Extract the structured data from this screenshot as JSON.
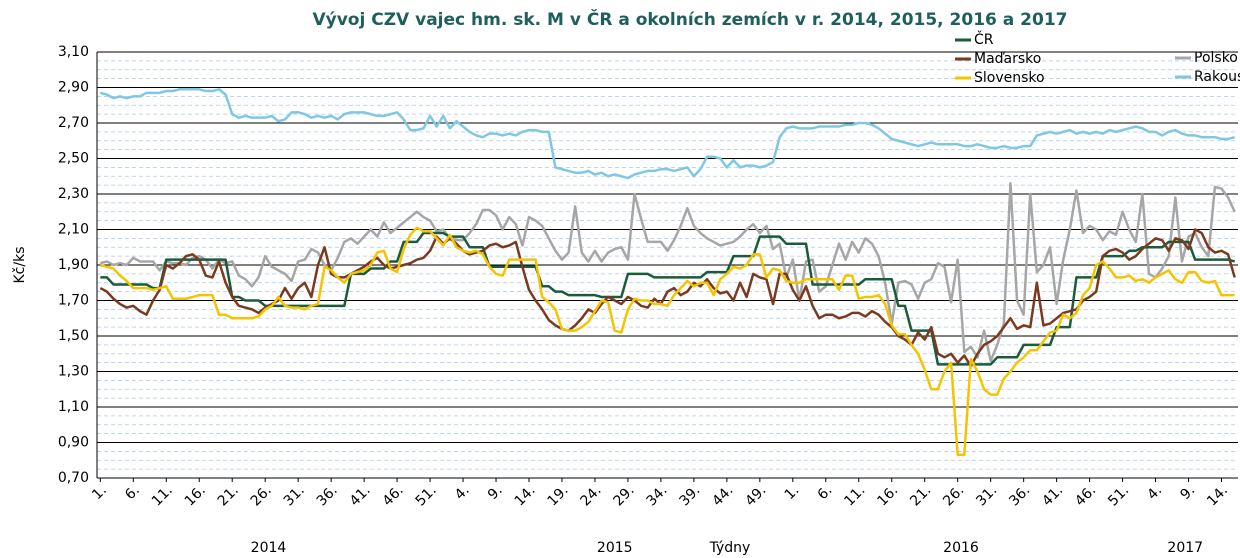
{
  "chart_data": {
    "type": "line",
    "title": "Vývoj CZV vajec hm. sk. M v ČR a okolních  zemích v r. 2014, 2015, 2016 a 2017",
    "y_label": "Kč/ks",
    "x_label": "Týdny",
    "ylim": [
      0.7,
      3.1
    ],
    "yticks": [
      {
        "value": 0.7,
        "label": "0,70"
      },
      {
        "value": 0.9,
        "label": "0,90"
      },
      {
        "value": 1.1,
        "label": "1,10"
      },
      {
        "value": 1.3,
        "label": "1,30"
      },
      {
        "value": 1.5,
        "label": "1,50"
      },
      {
        "value": 1.7,
        "label": "1,70"
      },
      {
        "value": 1.9,
        "label": "1,90"
      },
      {
        "value": 2.1,
        "label": "2,10"
      },
      {
        "value": 2.3,
        "label": "2,30"
      },
      {
        "value": 2.5,
        "label": "2,50"
      },
      {
        "value": 2.7,
        "label": "2,70"
      },
      {
        "value": 2.9,
        "label": "2,90"
      },
      {
        "value": 3.1,
        "label": "3,10"
      }
    ],
    "grid": true,
    "minor_grid": true,
    "legend": "top-right",
    "groups": [
      {
        "label": "2014",
        "size": 52
      },
      {
        "label": "2015",
        "size": 53
      },
      {
        "label": "2016",
        "size": 52
      },
      {
        "label": "2017",
        "size": 16
      }
    ],
    "categories": [
      "1.",
      null,
      null,
      null,
      null,
      "6.",
      null,
      null,
      null,
      null,
      "11.",
      null,
      null,
      null,
      null,
      "16.",
      null,
      null,
      null,
      null,
      "21.",
      null,
      null,
      null,
      null,
      "26.",
      null,
      null,
      null,
      null,
      "31.",
      null,
      null,
      null,
      null,
      "36.",
      null,
      null,
      null,
      null,
      "41.",
      null,
      null,
      null,
      null,
      "46.",
      null,
      null,
      null,
      null,
      "51.",
      null,
      null,
      null,
      null,
      "4.",
      null,
      null,
      null,
      null,
      "9.",
      null,
      null,
      null,
      null,
      "14.",
      null,
      null,
      null,
      null,
      "19.",
      null,
      null,
      null,
      null,
      "24.",
      null,
      null,
      null,
      null,
      "29.",
      null,
      null,
      null,
      null,
      "34.",
      null,
      null,
      null,
      null,
      "39.",
      null,
      null,
      null,
      null,
      "44.",
      null,
      null,
      null,
      null,
      "49.",
      null,
      null,
      null,
      null,
      "1.",
      null,
      null,
      null,
      null,
      "6.",
      null,
      null,
      null,
      null,
      "11.",
      null,
      null,
      null,
      null,
      "16.",
      null,
      null,
      null,
      null,
      "21.",
      null,
      null,
      null,
      null,
      "26.",
      null,
      null,
      null,
      null,
      "31.",
      null,
      null,
      null,
      null,
      "36.",
      null,
      null,
      null,
      null,
      "41.",
      null,
      null,
      null,
      null,
      "46.",
      null,
      null,
      null,
      null,
      "51.",
      null,
      null,
      null,
      null,
      "4.",
      null,
      null,
      null,
      null,
      "9.",
      null,
      null,
      null,
      null,
      "14.",
      null,
      null
    ],
    "series": [
      {
        "name": "ČR",
        "color": "#1a5c3a",
        "values": [
          1.83,
          1.83,
          1.79,
          1.79,
          1.79,
          1.79,
          1.79,
          1.79,
          1.77,
          1.77,
          1.93,
          1.93,
          1.93,
          1.93,
          1.93,
          1.93,
          1.93,
          1.93,
          1.93,
          1.93,
          1.72,
          1.72,
          1.7,
          1.7,
          1.7,
          1.67,
          1.67,
          1.67,
          1.67,
          1.67,
          1.67,
          1.67,
          1.67,
          1.67,
          1.67,
          1.67,
          1.67,
          1.67,
          1.85,
          1.85,
          1.85,
          1.88,
          1.88,
          1.88,
          1.92,
          1.92,
          2.03,
          2.03,
          2.03,
          2.08,
          2.08,
          2.08,
          2.08,
          2.06,
          2.06,
          2.06,
          2.0,
          2.0,
          2.0,
          1.89,
          1.89,
          1.89,
          1.89,
          1.89,
          1.89,
          1.89,
          1.89,
          1.78,
          1.78,
          1.75,
          1.75,
          1.73,
          1.73,
          1.73,
          1.73,
          1.73,
          1.72,
          1.72,
          1.72,
          1.72,
          1.85,
          1.85,
          1.85,
          1.85,
          1.83,
          1.83,
          1.83,
          1.83,
          1.83,
          1.83,
          1.83,
          1.83,
          1.86,
          1.86,
          1.86,
          1.86,
          1.95,
          1.95,
          1.95,
          1.95,
          2.06,
          2.06,
          2.06,
          2.06,
          2.02,
          2.02,
          2.02,
          2.02,
          1.79,
          1.79,
          1.79,
          1.79,
          1.79,
          1.79,
          1.79,
          1.79,
          1.82,
          1.82,
          1.82,
          1.82,
          1.82,
          1.67,
          1.67,
          1.53,
          1.53,
          1.53,
          1.53,
          1.34,
          1.34,
          1.34,
          1.34,
          1.34,
          1.34,
          1.34,
          1.34,
          1.34,
          1.38,
          1.38,
          1.38,
          1.38,
          1.45,
          1.45,
          1.45,
          1.45,
          1.45,
          1.55,
          1.55,
          1.55,
          1.83,
          1.83,
          1.83,
          1.83,
          1.95,
          1.95,
          1.95,
          1.95,
          1.98,
          1.98,
          2.0,
          2.0,
          2.0,
          2.0,
          2.03,
          2.03,
          2.03,
          2.03,
          1.93,
          1.93,
          1.93,
          1.93,
          1.93,
          1.93,
          1.92
        ]
      },
      {
        "name": "Maďarsko",
        "color": "#7b3a1e",
        "values": [
          1.77,
          1.75,
          1.71,
          1.68,
          1.66,
          1.67,
          1.64,
          1.62,
          1.7,
          1.76,
          1.9,
          1.88,
          1.91,
          1.95,
          1.96,
          1.93,
          1.84,
          1.83,
          1.92,
          1.8,
          1.72,
          1.67,
          1.66,
          1.65,
          1.63,
          1.66,
          1.68,
          1.7,
          1.77,
          1.71,
          1.77,
          1.8,
          1.72,
          1.9,
          2.0,
          1.85,
          1.83,
          1.83,
          1.85,
          1.87,
          1.89,
          1.92,
          1.94,
          1.9,
          1.88,
          1.89,
          1.9,
          1.91,
          1.93,
          1.94,
          1.98,
          2.06,
          2.02,
          2.05,
          2.02,
          1.98,
          1.96,
          1.97,
          1.98,
          2.01,
          2.02,
          2.0,
          2.01,
          2.03,
          1.89,
          1.76,
          1.7,
          1.65,
          1.59,
          1.56,
          1.54,
          1.53,
          1.56,
          1.6,
          1.65,
          1.63,
          1.68,
          1.72,
          1.7,
          1.68,
          1.72,
          1.7,
          1.67,
          1.66,
          1.71,
          1.68,
          1.75,
          1.77,
          1.73,
          1.75,
          1.8,
          1.78,
          1.82,
          1.77,
          1.74,
          1.75,
          1.7,
          1.8,
          1.72,
          1.85,
          1.83,
          1.82,
          1.68,
          1.85,
          1.85,
          1.76,
          1.7,
          1.78,
          1.67,
          1.6,
          1.62,
          1.62,
          1.6,
          1.61,
          1.63,
          1.63,
          1.61,
          1.64,
          1.62,
          1.58,
          1.55,
          1.5,
          1.48,
          1.45,
          1.52,
          1.48,
          1.55,
          1.4,
          1.38,
          1.4,
          1.35,
          1.39,
          1.33,
          1.4,
          1.45,
          1.47,
          1.5,
          1.55,
          1.6,
          1.54,
          1.56,
          1.55,
          1.8,
          1.56,
          1.57,
          1.6,
          1.63,
          1.64,
          1.65,
          1.7,
          1.72,
          1.75,
          1.95,
          1.98,
          1.99,
          1.97,
          1.93,
          1.95,
          1.99,
          2.02,
          2.05,
          2.04,
          1.98,
          2.05,
          2.04,
          1.99,
          2.1,
          2.08,
          2.0,
          1.97,
          1.98,
          1.96,
          1.83
        ]
      },
      {
        "name": "Slovensko",
        "color": "#f5c400",
        "values": [
          1.9,
          1.89,
          1.88,
          1.84,
          1.81,
          1.77,
          1.77,
          1.77,
          1.76,
          1.77,
          1.78,
          1.71,
          1.71,
          1.71,
          1.72,
          1.73,
          1.73,
          1.73,
          1.62,
          1.62,
          1.6,
          1.6,
          1.6,
          1.6,
          1.61,
          1.65,
          1.67,
          1.72,
          1.67,
          1.66,
          1.66,
          1.65,
          1.67,
          1.68,
          1.89,
          1.87,
          1.83,
          1.8,
          1.85,
          1.86,
          1.87,
          1.9,
          1.97,
          1.98,
          1.88,
          1.86,
          1.99,
          2.07,
          2.11,
          2.09,
          2.09,
          2.05,
          2.01,
          2.07,
          2.0,
          1.98,
          1.97,
          1.98,
          1.96,
          1.89,
          1.85,
          1.84,
          1.93,
          1.93,
          1.93,
          1.93,
          1.93,
          1.72,
          1.69,
          1.65,
          1.54,
          1.53,
          1.53,
          1.55,
          1.58,
          1.64,
          1.7,
          1.69,
          1.53,
          1.52,
          1.65,
          1.71,
          1.7,
          1.7,
          1.68,
          1.68,
          1.67,
          1.73,
          1.77,
          1.81,
          1.78,
          1.8,
          1.8,
          1.73,
          1.82,
          1.85,
          1.89,
          1.88,
          1.9,
          1.96,
          1.96,
          1.83,
          1.88,
          1.87,
          1.81,
          1.8,
          1.8,
          1.82,
          1.82,
          1.82,
          1.82,
          1.82,
          1.76,
          1.84,
          1.84,
          1.71,
          1.72,
          1.72,
          1.73,
          1.68,
          1.56,
          1.51,
          1.51,
          1.45,
          1.4,
          1.31,
          1.2,
          1.2,
          1.3,
          1.35,
          0.83,
          0.83,
          1.37,
          1.3,
          1.2,
          1.17,
          1.17,
          1.26,
          1.3,
          1.35,
          1.38,
          1.42,
          1.42,
          1.47,
          1.52,
          1.53,
          1.62,
          1.6,
          1.63,
          1.73,
          1.77,
          1.9,
          1.92,
          1.88,
          1.83,
          1.83,
          1.84,
          1.81,
          1.82,
          1.8,
          1.83,
          1.85,
          1.87,
          1.82,
          1.8,
          1.86,
          1.86,
          1.81,
          1.8,
          1.81,
          1.73,
          1.73,
          1.73
        ]
      },
      {
        "name": "Polsko",
        "color": "#a6a6a6",
        "values": [
          1.91,
          1.92,
          1.9,
          1.91,
          1.9,
          1.94,
          1.92,
          1.92,
          1.92,
          1.87,
          1.92,
          1.91,
          1.91,
          1.9,
          1.94,
          1.95,
          1.93,
          1.88,
          1.93,
          1.91,
          1.92,
          1.84,
          1.82,
          1.78,
          1.83,
          1.95,
          1.89,
          1.87,
          1.85,
          1.81,
          1.92,
          1.93,
          1.99,
          1.97,
          1.9,
          1.87,
          1.94,
          2.03,
          2.05,
          2.02,
          2.06,
          2.1,
          2.06,
          2.14,
          2.08,
          2.11,
          2.14,
          2.17,
          2.2,
          2.17,
          2.15,
          2.09,
          2.1,
          2.05,
          2.04,
          2.04,
          2.08,
          2.13,
          2.21,
          2.21,
          2.18,
          2.1,
          2.17,
          2.13,
          2.01,
          2.17,
          2.15,
          2.12,
          2.05,
          1.98,
          1.93,
          1.97,
          2.23,
          1.97,
          1.92,
          1.98,
          1.92,
          1.97,
          1.99,
          2.0,
          1.93,
          2.3,
          2.16,
          2.03,
          2.03,
          2.03,
          1.98,
          2.04,
          2.12,
          2.22,
          2.12,
          2.08,
          2.05,
          2.03,
          2.01,
          2.02,
          2.03,
          2.06,
          2.1,
          2.13,
          2.08,
          2.12,
          1.99,
          2.02,
          1.83,
          1.93,
          1.7,
          1.92,
          1.93,
          1.75,
          1.78,
          1.9,
          2.02,
          1.93,
          2.03,
          1.97,
          2.05,
          2.02,
          1.95,
          1.8,
          1.57,
          1.8,
          1.81,
          1.79,
          1.71,
          1.8,
          1.82,
          1.91,
          1.89,
          1.69,
          1.93,
          1.41,
          1.44,
          1.38,
          1.53,
          1.36,
          1.45,
          1.57,
          2.36,
          1.7,
          1.62,
          2.3,
          1.86,
          1.9,
          2.0,
          1.68,
          1.93,
          2.1,
          2.32,
          2.08,
          2.12,
          2.1,
          2.04,
          2.09,
          2.07,
          2.2,
          2.1,
          2.03,
          2.3,
          1.85,
          1.83,
          1.88,
          1.95,
          2.28,
          1.92,
          2.06,
          2.08,
          2.0,
          1.95,
          2.34,
          2.33,
          2.28,
          2.2
        ]
      },
      {
        "name": "Rakousko",
        "color": "#7ec8e3",
        "values": [
          2.87,
          2.86,
          2.84,
          2.85,
          2.84,
          2.85,
          2.85,
          2.87,
          2.87,
          2.87,
          2.88,
          2.88,
          2.89,
          2.89,
          2.89,
          2.89,
          2.88,
          2.88,
          2.89,
          2.86,
          2.75,
          2.73,
          2.74,
          2.73,
          2.73,
          2.73,
          2.74,
          2.71,
          2.72,
          2.76,
          2.76,
          2.75,
          2.73,
          2.74,
          2.73,
          2.74,
          2.72,
          2.75,
          2.76,
          2.76,
          2.76,
          2.75,
          2.74,
          2.74,
          2.75,
          2.76,
          2.72,
          2.66,
          2.66,
          2.67,
          2.74,
          2.68,
          2.74,
          2.67,
          2.71,
          2.68,
          2.65,
          2.63,
          2.62,
          2.64,
          2.64,
          2.63,
          2.64,
          2.63,
          2.65,
          2.66,
          2.66,
          2.65,
          2.65,
          2.45,
          2.44,
          2.43,
          2.42,
          2.42,
          2.43,
          2.41,
          2.42,
          2.4,
          2.41,
          2.4,
          2.39,
          2.41,
          2.42,
          2.43,
          2.43,
          2.44,
          2.44,
          2.43,
          2.44,
          2.45,
          2.4,
          2.44,
          2.51,
          2.51,
          2.5,
          2.45,
          2.49,
          2.45,
          2.46,
          2.46,
          2.45,
          2.46,
          2.48,
          2.62,
          2.67,
          2.68,
          2.67,
          2.67,
          2.67,
          2.68,
          2.68,
          2.68,
          2.68,
          2.69,
          2.69,
          2.7,
          2.7,
          2.69,
          2.67,
          2.64,
          2.61,
          2.6,
          2.59,
          2.58,
          2.57,
          2.58,
          2.59,
          2.58,
          2.58,
          2.58,
          2.58,
          2.57,
          2.57,
          2.58,
          2.57,
          2.56,
          2.56,
          2.57,
          2.56,
          2.56,
          2.57,
          2.57,
          2.63,
          2.64,
          2.65,
          2.64,
          2.65,
          2.66,
          2.64,
          2.65,
          2.64,
          2.65,
          2.64,
          2.66,
          2.65,
          2.66,
          2.67,
          2.68,
          2.67,
          2.65,
          2.65,
          2.63,
          2.65,
          2.66,
          2.64,
          2.63,
          2.63,
          2.62,
          2.62,
          2.62,
          2.61,
          2.61,
          2.62
        ]
      }
    ]
  }
}
